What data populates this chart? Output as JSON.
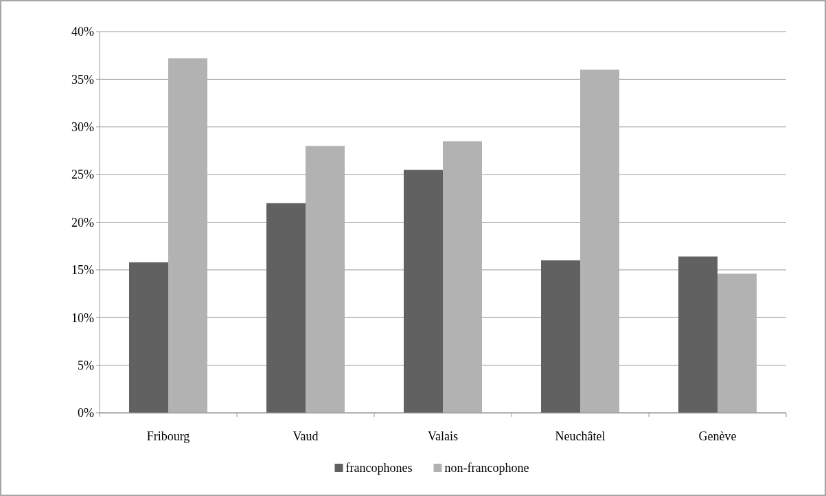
{
  "chart_data": {
    "type": "bar",
    "categories": [
      "Fribourg",
      "Vaud",
      "Valais",
      "Neuchâtel",
      "Genève"
    ],
    "series": [
      {
        "name": "francophones",
        "color": "#616161",
        "values": [
          15.8,
          22.0,
          25.5,
          16.0,
          16.4
        ]
      },
      {
        "name": "non-francophone",
        "color": "#b2b2b2",
        "values": [
          37.2,
          28.0,
          28.5,
          36.0,
          14.6
        ]
      }
    ],
    "ylim": [
      0,
      40
    ],
    "yticks": [
      {
        "value": 0,
        "label": "0%"
      },
      {
        "value": 5,
        "label": "5%"
      },
      {
        "value": 10,
        "label": "10%"
      },
      {
        "value": 15,
        "label": "15%"
      },
      {
        "value": 20,
        "label": "20%"
      },
      {
        "value": 25,
        "label": "25%"
      },
      {
        "value": 30,
        "label": "30%"
      },
      {
        "value": 35,
        "label": "35%"
      },
      {
        "value": 40,
        "label": "40%"
      }
    ],
    "grid": "y",
    "legend": "bottom"
  }
}
